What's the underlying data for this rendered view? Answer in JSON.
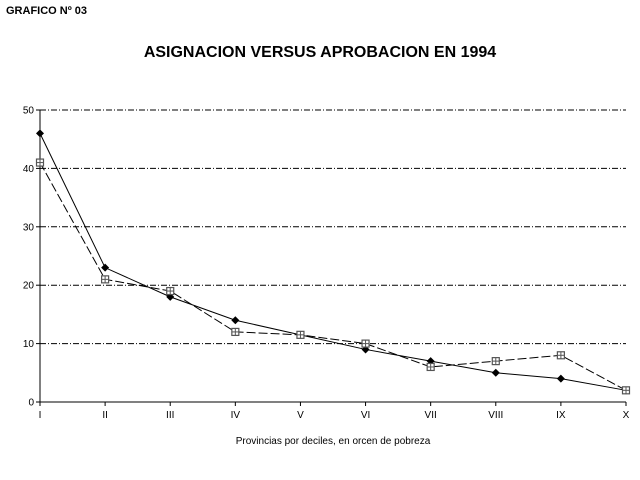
{
  "figure_label": "GRAFICO Nº 03",
  "chart_data": {
    "type": "line",
    "title": "ASIGNACION VERSUS APROBACION EN 1994",
    "xlabel": "Provincias por deciles, en orcen de pobreza",
    "ylabel": "",
    "categories": [
      "I",
      "II",
      "III",
      "IV",
      "V",
      "VI",
      "VII",
      "VIII",
      "IX",
      "X"
    ],
    "ylim": [
      0,
      50
    ],
    "yticks": [
      0,
      10,
      20,
      30,
      40,
      50
    ],
    "grid": "horizontal dashed",
    "legend": "none",
    "series": [
      {
        "marker": "diamond",
        "color": "#000000",
        "values": [
          46,
          23,
          18,
          14,
          11.5,
          9,
          7,
          5,
          4,
          2
        ]
      },
      {
        "marker": "square",
        "color": "#555555",
        "values": [
          41,
          21,
          19,
          12,
          11.5,
          10,
          6,
          7,
          8,
          2
        ]
      }
    ]
  }
}
